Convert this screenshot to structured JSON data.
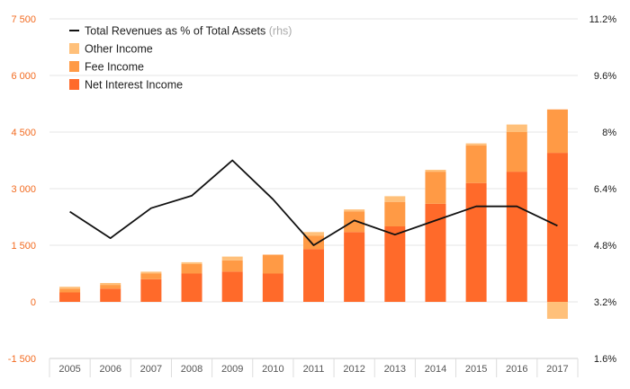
{
  "chart_data": {
    "type": "bar",
    "categories": [
      "2005",
      "2006",
      "2007",
      "2008",
      "2009",
      "2010",
      "2011",
      "2012",
      "2013",
      "2014",
      "2015",
      "2016",
      "2017"
    ],
    "series": [
      {
        "name": "Net Interest Income",
        "kind": "bar",
        "color": "#ff6a2a",
        "values": [
          250,
          350,
          600,
          750,
          800,
          750,
          1400,
          1850,
          2000,
          2600,
          3150,
          3450,
          3950
        ]
      },
      {
        "name": "Fee Income",
        "kind": "bar",
        "color": "#ff9a45",
        "values": [
          100,
          100,
          150,
          250,
          300,
          500,
          350,
          550,
          650,
          850,
          1000,
          1050,
          1150
        ]
      },
      {
        "name": "Other Income",
        "kind": "bar",
        "color": "#ffc07a",
        "values": [
          50,
          50,
          50,
          50,
          100,
          0,
          100,
          50,
          150,
          50,
          50,
          200,
          -450
        ]
      },
      {
        "name": "Total Revenues as % of Total Assets",
        "kind": "line",
        "axis": "right",
        "color": "#111111",
        "values": [
          5.75,
          5.0,
          5.85,
          6.2,
          7.2,
          6.1,
          4.8,
          5.5,
          5.1,
          5.5,
          5.9,
          5.9,
          5.35
        ]
      }
    ],
    "y_left": {
      "ylim": [
        -1500,
        7500
      ],
      "ticks": [
        7500,
        6000,
        4500,
        3000,
        1500,
        0,
        -1500
      ],
      "tick_labels": [
        "7 500",
        "6 000",
        "4 500",
        "3 000",
        "1 500",
        "0",
        "-1 500"
      ]
    },
    "y_right": {
      "ylim": [
        1.6,
        11.2
      ],
      "ticks": [
        11.2,
        9.6,
        8.0,
        6.4,
        4.8,
        3.2,
        1.6
      ],
      "tick_labels": [
        "11.2%",
        "9.6%",
        "8%",
        "6.4%",
        "4.8%",
        "3.2%",
        "1.6%"
      ]
    },
    "legend": {
      "position": "top-left",
      "items": [
        {
          "label": "Total Revenues as % of Total Assets",
          "suffix": "(rhs)",
          "style": "line",
          "color": "#111111"
        },
        {
          "label": "Other Income",
          "style": "box",
          "color": "#ffc07a"
        },
        {
          "label": "Fee Income",
          "style": "box",
          "color": "#ff9a45"
        },
        {
          "label": "Net Interest Income",
          "style": "box",
          "color": "#ff6a2a"
        }
      ]
    },
    "grid": true,
    "title": "",
    "xlabel": "",
    "ylabel": ""
  }
}
